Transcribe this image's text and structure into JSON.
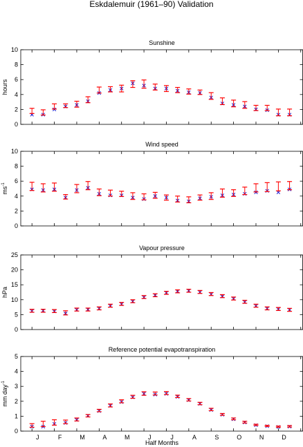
{
  "figure": {
    "suptitle": "Eskdalemuir (1961–90) Validation",
    "xlabel": "Half Months",
    "month_labels": [
      "J",
      "F",
      "M",
      "A",
      "M",
      "J",
      "J",
      "A",
      "S",
      "O",
      "N",
      "D"
    ]
  },
  "colors": {
    "observed_bar": "#ff0000",
    "modelled_marker": "#0000cc",
    "axes": "#000000"
  },
  "chart_data": [
    {
      "type": "errorbar-scatter",
      "title": "Sunshine",
      "ylabel": "hours",
      "ylabel_sup": "",
      "ylim": [
        0,
        10
      ],
      "yticks": [
        0,
        2,
        4,
        6,
        8,
        10
      ],
      "x": [
        1,
        2,
        3,
        4,
        5,
        6,
        7,
        8,
        9,
        10,
        11,
        12,
        13,
        14,
        15,
        16,
        17,
        18,
        19,
        20,
        21,
        22,
        23,
        24
      ],
      "series": [
        {
          "name": "",
          "marker": "errorbar",
          "values": [
            1.8,
            1.6,
            2.4,
            2.5,
            2.7,
            3.3,
            4.6,
            4.7,
            4.8,
            5.4,
            5.4,
            5.0,
            4.8,
            4.6,
            4.4,
            4.3,
            3.8,
            3.1,
            2.8,
            2.6,
            2.2,
            2.2,
            1.6,
            1.6
          ],
          "err": [
            0.35,
            0.35,
            0.35,
            0.25,
            0.4,
            0.4,
            0.4,
            0.35,
            0.45,
            0.45,
            0.55,
            0.4,
            0.4,
            0.35,
            0.35,
            0.3,
            0.45,
            0.45,
            0.45,
            0.45,
            0.35,
            0.35,
            0.45,
            0.45
          ]
        },
        {
          "name": "",
          "marker": "x",
          "values": [
            1.3,
            1.3,
            2.0,
            2.4,
            2.6,
            3.1,
            4.2,
            4.6,
            4.8,
            5.5,
            5.2,
            4.8,
            4.8,
            4.5,
            4.3,
            4.2,
            3.6,
            2.8,
            2.6,
            2.4,
            2.0,
            1.9,
            1.3,
            1.3
          ]
        }
      ]
    },
    {
      "type": "errorbar-scatter",
      "title": "Wind speed",
      "ylabel": "ms",
      "ylabel_sup": "-1",
      "ylim": [
        0,
        10
      ],
      "yticks": [
        0,
        2,
        4,
        6,
        8,
        10
      ],
      "x": [
        1,
        2,
        3,
        4,
        5,
        6,
        7,
        8,
        9,
        10,
        11,
        12,
        13,
        14,
        15,
        16,
        17,
        18,
        19,
        20,
        21,
        22,
        23,
        24
      ],
      "series": [
        {
          "name": "",
          "marker": "errorbar",
          "values": [
            5.3,
            5.1,
            5.2,
            3.9,
            5.0,
            5.4,
            4.5,
            4.4,
            4.3,
            4.0,
            3.9,
            4.1,
            3.8,
            3.6,
            3.5,
            3.8,
            4.0,
            4.4,
            4.4,
            4.7,
            5.1,
            5.2,
            5.3,
            5.4
          ],
          "err": [
            0.55,
            0.55,
            0.55,
            0.3,
            0.55,
            0.55,
            0.45,
            0.4,
            0.35,
            0.45,
            0.4,
            0.4,
            0.35,
            0.4,
            0.4,
            0.35,
            0.45,
            0.55,
            0.45,
            0.5,
            0.55,
            0.6,
            0.6,
            0.55
          ]
        },
        {
          "name": "",
          "marker": "x",
          "values": [
            4.9,
            4.8,
            4.9,
            3.8,
            4.8,
            5.1,
            4.3,
            4.1,
            4.1,
            3.8,
            3.6,
            4.0,
            3.8,
            3.4,
            3.3,
            3.7,
            3.9,
            4.1,
            4.2,
            4.3,
            4.5,
            4.7,
            4.5,
            4.9
          ]
        }
      ]
    },
    {
      "type": "errorbar-scatter",
      "title": "Vapour pressure",
      "ylabel": "hPa",
      "ylabel_sup": "",
      "ylim": [
        0,
        25
      ],
      "yticks": [
        0,
        5,
        10,
        15,
        20,
        25
      ],
      "x": [
        1,
        2,
        3,
        4,
        5,
        6,
        7,
        8,
        9,
        10,
        11,
        12,
        13,
        14,
        15,
        16,
        17,
        18,
        19,
        20,
        21,
        22,
        23,
        24
      ],
      "series": [
        {
          "name": "",
          "marker": "errorbar",
          "values": [
            6.3,
            6.3,
            6.2,
            5.6,
            6.7,
            6.7,
            7.1,
            8.0,
            8.6,
            9.5,
            10.9,
            11.5,
            12.3,
            12.8,
            13.0,
            12.6,
            11.9,
            11.2,
            10.4,
            9.3,
            8.0,
            7.1,
            6.9,
            6.6
          ],
          "err": [
            0.5,
            0.5,
            0.5,
            0.7,
            0.5,
            0.5,
            0.5,
            0.5,
            0.5,
            0.5,
            0.5,
            0.5,
            0.5,
            0.5,
            0.5,
            0.5,
            0.5,
            0.5,
            0.5,
            0.5,
            0.5,
            0.5,
            0.5,
            0.5
          ]
        },
        {
          "name": "",
          "marker": "x",
          "values": [
            6.2,
            6.3,
            6.1,
            5.4,
            6.6,
            6.7,
            7.0,
            7.9,
            8.5,
            9.4,
            10.8,
            11.5,
            12.3,
            12.8,
            13.0,
            12.5,
            11.8,
            11.1,
            10.3,
            9.2,
            7.9,
            7.0,
            6.8,
            6.6
          ]
        }
      ]
    },
    {
      "type": "errorbar-scatter",
      "title": "Reference potential evapotranspiration",
      "ylabel": "mm day",
      "ylabel_sup": "-1",
      "ylim": [
        0,
        5
      ],
      "yticks": [
        0,
        1,
        2,
        3,
        4,
        5
      ],
      "x": [
        1,
        2,
        3,
        4,
        5,
        6,
        7,
        8,
        9,
        10,
        11,
        12,
        13,
        14,
        15,
        16,
        17,
        18,
        19,
        20,
        21,
        22,
        23,
        24
      ],
      "series": [
        {
          "name": "",
          "marker": "errorbar",
          "values": [
            0.38,
            0.48,
            0.58,
            0.62,
            0.78,
            1.03,
            1.38,
            1.72,
            2.0,
            2.3,
            2.52,
            2.52,
            2.55,
            2.33,
            2.1,
            1.85,
            1.45,
            1.12,
            0.82,
            0.6,
            0.42,
            0.35,
            0.3,
            0.32
          ],
          "err": [
            0.12,
            0.18,
            0.18,
            0.12,
            0.1,
            0.08,
            0.08,
            0.1,
            0.1,
            0.1,
            0.12,
            0.1,
            0.1,
            0.08,
            0.08,
            0.08,
            0.08,
            0.06,
            0.06,
            0.06,
            0.04,
            0.04,
            0.04,
            0.05
          ]
        },
        {
          "name": "",
          "marker": "x",
          "values": [
            0.3,
            0.3,
            0.48,
            0.55,
            0.75,
            1.03,
            1.35,
            1.7,
            1.95,
            2.27,
            2.5,
            2.45,
            2.5,
            2.3,
            2.08,
            1.83,
            1.42,
            1.1,
            0.8,
            0.58,
            0.4,
            0.33,
            0.28,
            0.3
          ]
        }
      ]
    }
  ]
}
